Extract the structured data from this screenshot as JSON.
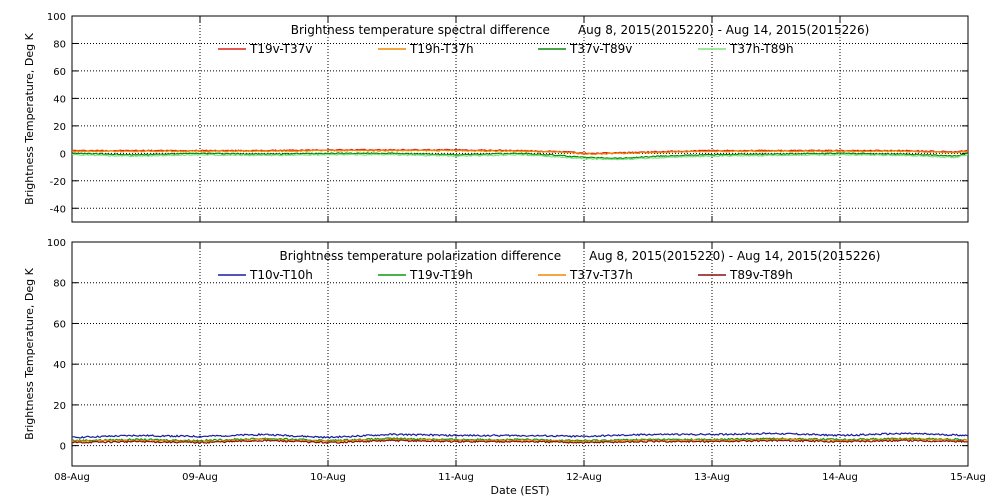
{
  "xaxis": {
    "label": "Date (EST)",
    "ticks": [
      "08-Aug",
      "09-Aug",
      "10-Aug",
      "11-Aug",
      "12-Aug",
      "13-Aug",
      "14-Aug",
      "15-Aug"
    ]
  },
  "chart_data": [
    {
      "type": "line",
      "title": "Brightness temperature spectral difference",
      "subtitle": "Aug  8, 2015(2015220) - Aug 14, 2015(2015226)",
      "xlabel": "",
      "ylabel": "Brightness Temperature, Deg K",
      "ylim": [
        -50,
        100
      ],
      "yticks": [
        -40,
        -20,
        0,
        20,
        40,
        60,
        80,
        100
      ],
      "xlim_days": [
        0,
        7
      ],
      "grid": "vertical dotted at each day",
      "legend_placement": "top",
      "series": [
        {
          "name": "T19v-T37v",
          "color": "#e0201a",
          "x": [
            0,
            0.5,
            1,
            1.5,
            2,
            2.5,
            3,
            3.5,
            3.9,
            4.0,
            4.1,
            4.5,
            5,
            5.5,
            6,
            6.5,
            6.9,
            7
          ],
          "y": [
            2,
            2,
            2,
            2,
            2.5,
            2.5,
            2.5,
            2,
            1,
            0,
            0,
            1,
            2,
            2,
            2,
            2,
            1,
            2
          ]
        },
        {
          "name": "T19h-T37h",
          "color": "#f08a00",
          "x": [
            0,
            0.5,
            1,
            1.5,
            2,
            2.5,
            3,
            3.5,
            3.9,
            4.0,
            4.1,
            4.5,
            5,
            5.5,
            6,
            6.5,
            6.9,
            7
          ],
          "y": [
            1.5,
            1.5,
            1.5,
            1.5,
            2,
            2,
            2,
            1.5,
            0.5,
            -0.5,
            -0.5,
            0.5,
            1.5,
            1.5,
            1.5,
            1.5,
            0.5,
            1.5
          ]
        },
        {
          "name": "T37v-T89v",
          "color": "#0a8a0a",
          "x": [
            0,
            0.5,
            1,
            1.5,
            2,
            2.5,
            3,
            3.5,
            3.8,
            4.0,
            4.3,
            4.6,
            5,
            5.5,
            6,
            6.5,
            6.9,
            7
          ],
          "y": [
            0,
            -1,
            0,
            -0.5,
            0,
            0,
            -1,
            0,
            -1.5,
            -3,
            -3.5,
            -2,
            -1,
            -0.5,
            0,
            -0.5,
            -2,
            0
          ]
        },
        {
          "name": "T37h-T89h",
          "color": "#7ee37e",
          "x": [
            0,
            0.5,
            1,
            1.5,
            2,
            2.5,
            3,
            3.5,
            3.8,
            4.0,
            4.3,
            4.6,
            5,
            5.5,
            6,
            6.5,
            6.9,
            7
          ],
          "y": [
            -1,
            -2,
            -1,
            -1.5,
            -1,
            -1,
            -2,
            -1,
            -2.5,
            -4,
            -4.5,
            -3,
            -2,
            -1.5,
            -1,
            -1.5,
            -3,
            -1
          ]
        }
      ]
    },
    {
      "type": "line",
      "title": "Brightness temperature polarization difference",
      "subtitle": "Aug  8, 2015(2015220) - Aug 14, 2015(2015226)",
      "xlabel": "Date (EST)",
      "ylabel": "Brightness Temperature, Deg K",
      "ylim": [
        -10,
        100
      ],
      "yticks": [
        0,
        20,
        40,
        60,
        80,
        100
      ],
      "xlim_days": [
        0,
        7
      ],
      "grid": "vertical dotted at each day",
      "legend_placement": "top",
      "series": [
        {
          "name": "T10v-T10h",
          "color": "#1a1aa0",
          "x": [
            0,
            0.5,
            1,
            1.5,
            2,
            2.5,
            3,
            3.5,
            4,
            4.5,
            5,
            5.5,
            6,
            6.5,
            7
          ],
          "y": [
            4,
            5,
            4.5,
            5.5,
            4,
            5.5,
            5,
            5,
            4.5,
            5.5,
            5.5,
            6,
            5,
            6,
            5
          ]
        },
        {
          "name": "T19v-T19h",
          "color": "#119911",
          "x": [
            0,
            0.5,
            1,
            1.5,
            2,
            2.5,
            3,
            3.5,
            4,
            4.5,
            5,
            5.5,
            6,
            6.5,
            7
          ],
          "y": [
            2.5,
            3,
            2.5,
            3.5,
            2.5,
            3.5,
            3,
            3,
            2.5,
            3,
            3,
            3.5,
            3,
            3.5,
            3
          ]
        },
        {
          "name": "T37v-T37h",
          "color": "#f08a00",
          "x": [
            0,
            0.5,
            1,
            1.5,
            2,
            2.5,
            3,
            3.5,
            4,
            4.5,
            5,
            5.5,
            6,
            6.5,
            7
          ],
          "y": [
            2,
            2.5,
            2,
            3,
            2,
            3,
            2.5,
            2.5,
            2,
            2.5,
            2.5,
            3,
            2.5,
            3,
            2.5
          ]
        },
        {
          "name": "T89v-T89h",
          "color": "#8a1010",
          "x": [
            0,
            0.5,
            1,
            1.5,
            2,
            2.5,
            3,
            3.5,
            4,
            4.5,
            5,
            5.5,
            6,
            6.5,
            7
          ],
          "y": [
            1.5,
            2,
            1.5,
            2.5,
            1.5,
            2.5,
            2,
            2,
            1.5,
            2,
            2,
            2.5,
            2,
            2.5,
            2
          ]
        }
      ]
    }
  ]
}
